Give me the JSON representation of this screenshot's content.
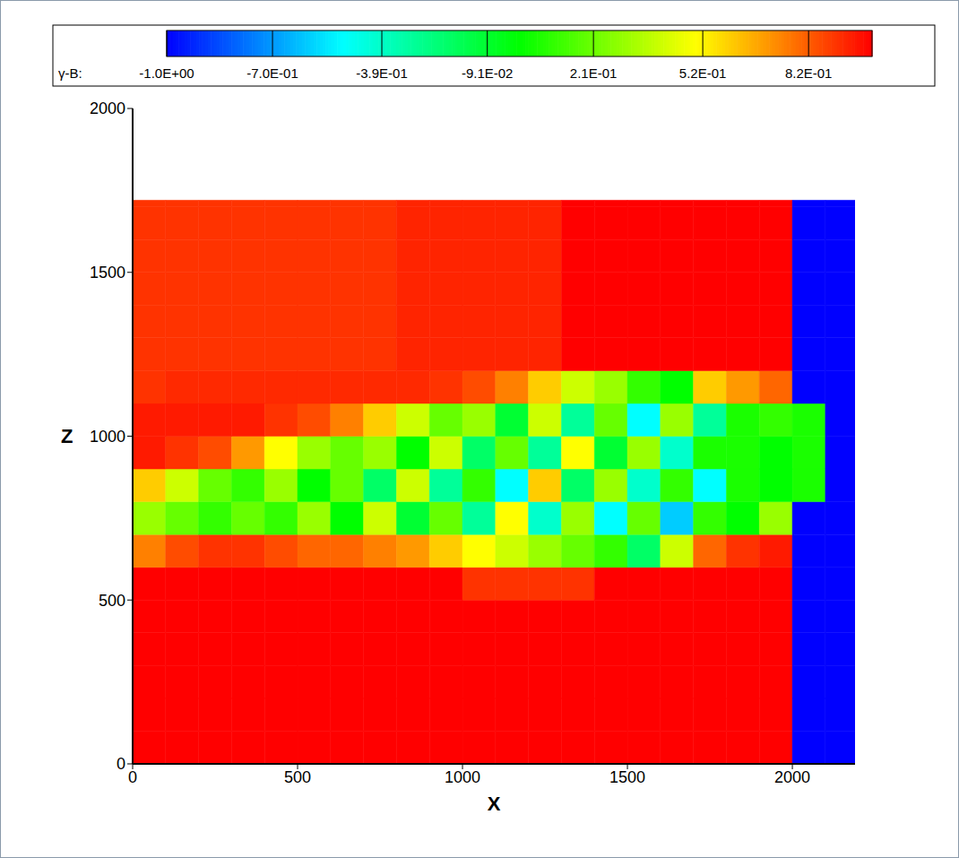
{
  "chart_data": {
    "type": "heatmap",
    "xlabel": "X",
    "ylabel": "Z",
    "xlim": [
      0,
      2190
    ],
    "ylim": [
      0,
      2000
    ],
    "xticks": [
      0,
      500,
      1000,
      1500,
      2000
    ],
    "yticks": [
      0,
      500,
      1000,
      1500,
      2000
    ],
    "x_edges": [
      0,
      100,
      200,
      300,
      400,
      500,
      600,
      700,
      800,
      900,
      1000,
      1100,
      1200,
      1300,
      1400,
      1500,
      1600,
      1700,
      1800,
      1900,
      2000,
      2100,
      2190
    ],
    "z_edges": [
      0,
      100,
      200,
      300,
      400,
      500,
      600,
      700,
      800,
      900,
      1000,
      1100,
      1200,
      1300,
      1400,
      1500,
      1600,
      1700,
      1720
    ],
    "cells": [
      [
        1,
        1,
        1,
        1,
        1,
        1,
        1,
        1,
        1,
        1,
        1,
        1,
        1,
        1,
        1,
        1,
        1,
        1,
        1,
        1,
        -1,
        -1
      ],
      [
        1,
        1,
        1,
        1,
        1,
        1,
        1,
        1,
        1,
        1,
        1,
        1,
        1,
        1,
        1,
        1,
        1,
        1,
        1,
        1,
        -1,
        -1
      ],
      [
        1,
        1,
        1,
        1,
        1,
        1,
        1,
        1,
        1,
        1,
        1,
        1,
        1,
        1,
        1,
        1,
        1,
        1,
        1,
        1,
        -1,
        -1
      ],
      [
        1,
        1,
        1,
        1,
        1,
        1,
        1,
        1,
        1,
        1,
        1,
        1,
        1,
        1,
        1,
        1,
        1,
        1,
        1,
        1,
        -1,
        -1
      ],
      [
        1,
        1,
        1,
        1,
        1,
        1,
        1,
        1,
        1,
        1,
        1,
        1,
        1,
        1,
        1,
        1,
        1,
        1,
        1,
        1,
        -1,
        -1
      ],
      [
        1,
        1,
        1,
        1,
        1,
        1,
        1,
        1,
        1,
        1,
        0.9,
        0.9,
        0.9,
        0.9,
        1,
        1,
        1,
        1,
        1,
        1,
        -1,
        -1
      ],
      [
        0.75,
        0.85,
        0.9,
        0.9,
        0.85,
        0.8,
        0.8,
        0.75,
        0.7,
        0.6,
        0.5,
        0.4,
        0.3,
        0.2,
        0.1,
        -0.2,
        0.4,
        0.8,
        0.9,
        0.95,
        -1,
        -1
      ],
      [
        0.3,
        0.2,
        0.1,
        0.2,
        0.1,
        0.3,
        0.0,
        0.4,
        -0.1,
        0.2,
        -0.3,
        0.5,
        -0.4,
        0.3,
        -0.5,
        0.2,
        -0.6,
        0.1,
        0.0,
        0.3,
        -1,
        -1
      ],
      [
        0.6,
        0.4,
        0.2,
        0.1,
        0.3,
        0.0,
        0.2,
        -0.2,
        0.4,
        -0.3,
        0.1,
        -0.5,
        0.6,
        -0.2,
        0.3,
        -0.4,
        0.1,
        -0.5,
        0.05,
        0.0,
        0.05,
        -1
      ],
      [
        0.95,
        0.9,
        0.85,
        0.7,
        0.5,
        0.3,
        0.2,
        0.3,
        0.0,
        0.4,
        -0.2,
        0.2,
        -0.3,
        0.5,
        -0.1,
        0.3,
        -0.4,
        0.05,
        0.05,
        0.0,
        0.05,
        -1
      ],
      [
        0.95,
        0.95,
        0.95,
        0.95,
        0.9,
        0.85,
        0.75,
        0.6,
        0.4,
        0.2,
        0.3,
        -0.1,
        0.4,
        -0.3,
        0.2,
        -0.5,
        0.3,
        -0.3,
        0.05,
        0.1,
        0.05,
        -1
      ],
      [
        0.9,
        0.92,
        0.92,
        0.92,
        0.92,
        0.92,
        0.92,
        0.92,
        0.92,
        0.9,
        0.85,
        0.75,
        0.6,
        0.4,
        0.3,
        0.1,
        0.0,
        0.6,
        0.7,
        0.8,
        -1,
        -1
      ],
      [
        0.9,
        0.9,
        0.9,
        0.9,
        0.9,
        0.9,
        0.9,
        0.9,
        0.93,
        0.93,
        0.93,
        0.93,
        0.93,
        1,
        1,
        1,
        1,
        1,
        1,
        1,
        -1,
        -1
      ],
      [
        0.9,
        0.9,
        0.9,
        0.9,
        0.9,
        0.9,
        0.9,
        0.9,
        0.93,
        0.93,
        0.93,
        0.93,
        0.93,
        1,
        1,
        1,
        1,
        1,
        1,
        1,
        -1,
        -1
      ],
      [
        0.9,
        0.9,
        0.9,
        0.9,
        0.9,
        0.9,
        0.9,
        0.9,
        0.93,
        0.93,
        0.93,
        0.93,
        0.93,
        1,
        1,
        1,
        1,
        1,
        1,
        1,
        -1,
        -1
      ],
      [
        0.9,
        0.9,
        0.9,
        0.9,
        0.9,
        0.9,
        0.9,
        0.9,
        0.93,
        0.93,
        0.93,
        0.93,
        0.93,
        1,
        1,
        1,
        1,
        1,
        1,
        1,
        -1,
        -1
      ],
      [
        0.9,
        0.9,
        0.9,
        0.9,
        0.9,
        0.9,
        0.9,
        0.9,
        0.93,
        0.93,
        0.93,
        0.93,
        0.93,
        1,
        1,
        1,
        1,
        1,
        1,
        1,
        -1,
        -1
      ],
      [
        0.9,
        0.9,
        0.9,
        0.9,
        0.9,
        0.9,
        0.9,
        0.9,
        0.93,
        0.93,
        0.93,
        0.93,
        0.93,
        1,
        1,
        1,
        1,
        1,
        1,
        1,
        -1,
        -1
      ]
    ],
    "colorbar": {
      "title": "γ-B:",
      "range": [
        -1,
        1
      ],
      "ticks": [
        {
          "value": -1,
          "label": "-1.0E+00"
        },
        {
          "value": -0.7,
          "label": "-7.0E-01"
        },
        {
          "value": -0.39,
          "label": "-3.9E-01"
        },
        {
          "value": -0.091,
          "label": "-9.1E-02"
        },
        {
          "value": 0.21,
          "label": "2.1E-01"
        },
        {
          "value": 0.52,
          "label": "5.2E-01"
        },
        {
          "value": 0.82,
          "label": "8.2E-01"
        }
      ]
    }
  }
}
